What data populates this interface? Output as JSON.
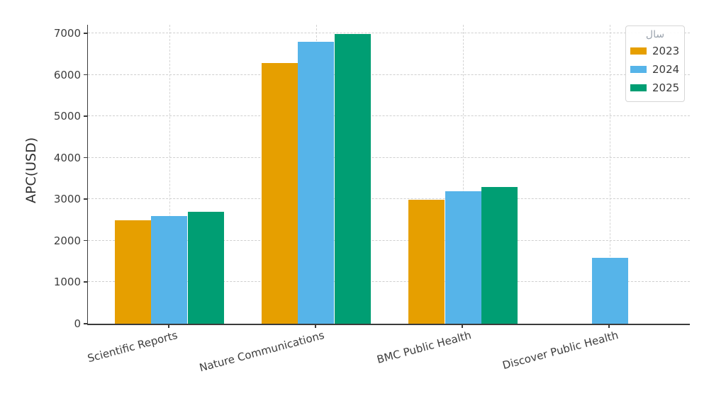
{
  "chart_data": {
    "type": "bar",
    "title": "",
    "xlabel": "",
    "ylabel": "APC(USD)",
    "categories": [
      "Scientific Reports",
      "Nature Communications",
      "BMC Public Health",
      "Discover Public Health"
    ],
    "series": [
      {
        "name": "2023",
        "color": "#E69F00",
        "values": [
          2490,
          6290,
          2990,
          null
        ]
      },
      {
        "name": "2024",
        "color": "#56B4E9",
        "values": [
          2590,
          6790,
          3190,
          1590
        ]
      },
      {
        "name": "2025",
        "color": "#009E73",
        "values": [
          2690,
          6990,
          3290,
          null
        ]
      }
    ],
    "yticks": [
      0,
      1000,
      2000,
      3000,
      4000,
      5000,
      6000,
      7000
    ],
    "ylim": [
      0,
      7200
    ],
    "grid": true,
    "legend": {
      "title": "سال",
      "position": "upper-right"
    }
  },
  "palette": {
    "axis": "#3b3b3b",
    "gridline": "#cfcfcf",
    "tick_text": "#3d3d3d",
    "legend_title_text": "#9aa3ad",
    "background": "#ffffff"
  }
}
